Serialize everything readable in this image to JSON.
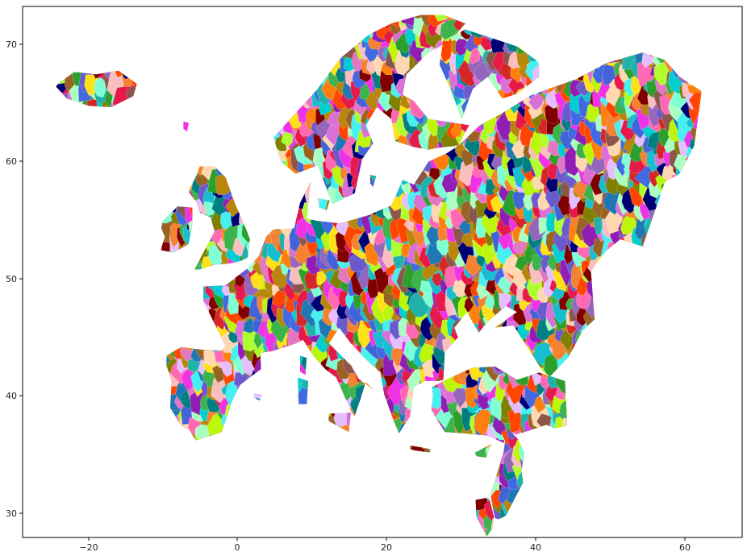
{
  "chart_data": {
    "type": "scatter",
    "title": "",
    "xlabel": "",
    "ylabel": "",
    "xlim": [
      -29,
      68.5
    ],
    "ylim": [
      28,
      71.8
    ],
    "x_ticks": [
      -20,
      0,
      20,
      40,
      60
    ],
    "y_ticks": [
      30,
      40,
      50,
      60,
      70
    ],
    "x_tick_labels": [
      "−20",
      "0",
      "20",
      "40",
      "60"
    ],
    "y_tick_labels": [
      "30",
      "40",
      "50",
      "60",
      "70"
    ],
    "grid": false,
    "legend": "none",
    "description": "Choropleth of European regions, each filled with a random color",
    "palette": [
      "#e6194b",
      "#3cb44b",
      "#ffe119",
      "#4363d8",
      "#f58231",
      "#911eb4",
      "#46f0f0",
      "#f032e6",
      "#bcf60c",
      "#fabebe",
      "#008080",
      "#e6beff",
      "#9a6324",
      "#800000",
      "#aaffc3",
      "#808000",
      "#ffd8b1",
      "#000075",
      "#1f77b4",
      "#ff7f0e",
      "#2ca02c",
      "#d62728",
      "#9467bd",
      "#8c564b",
      "#e377c2",
      "#17becf",
      "#7fffd4",
      "#ff69b4",
      "#6a5acd",
      "#20b2aa",
      "#ff4500",
      "#adff2f",
      "#da70d6",
      "#4169e1",
      "#00ced1",
      "#b8860b"
    ],
    "landmasses": [
      {
        "name": "Iceland",
        "lon": [
          -24,
          -22,
          -19,
          -16,
          -13.5,
          -14,
          -17,
          -20,
          -23,
          -24.5
        ],
        "lat": [
          65.5,
          66.4,
          66.2,
          66.5,
          65.4,
          64.4,
          63.5,
          63.6,
          64.2,
          65.2
        ]
      },
      {
        "name": "Scandinavia",
        "lon": [
          5,
          8,
          11,
          14,
          18,
          21,
          25,
          28,
          31,
          29,
          26,
          23,
          22.5,
          24,
          26,
          29.5,
          31.5,
          30,
          28,
          26,
          24,
          21.5,
          21,
          19,
          17.5,
          18.5,
          17,
          16,
          13,
          11,
          8,
          6
        ],
        "lat": [
          61,
          63,
          65,
          67.5,
          69.5,
          70.4,
          71.1,
          71.1,
          70.4,
          69,
          68,
          66.2,
          64.5,
          64,
          62.5,
          62.2,
          62,
          60.3,
          60.2,
          60,
          60.2,
          60.7,
          62.5,
          63.5,
          62,
          60.5,
          59.2,
          56.4,
          55.5,
          58.7,
          58,
          59
        ]
      },
      {
        "name": "Kola-Karelia",
        "lon": [
          28,
          31,
          34,
          38,
          41,
          41,
          38,
          36,
          34,
          32,
          30.5,
          29,
          27.5
        ],
        "lat": [
          69,
          69.9,
          69.3,
          68.5,
          67.2,
          66,
          64.6,
          64.2,
          66,
          65,
          62.5,
          65,
          67
        ]
      },
      {
        "name": "Great Britain",
        "lon": [
          -5,
          -3,
          -1.5,
          -0.2,
          1.3,
          1.8,
          1.5,
          0.5,
          -1,
          -3,
          -5,
          -5.7,
          -4.5,
          -3,
          -3.5,
          -5,
          -5.5,
          -6.5,
          -5.5
        ],
        "lat": [
          58.6,
          58.6,
          57.7,
          55.5,
          53.4,
          52.6,
          51.1,
          50.8,
          50.6,
          50.5,
          50.1,
          50.1,
          51.5,
          53.2,
          54.4,
          54.8,
          55.7,
          56.5,
          57.8
        ]
      },
      {
        "name": "Ireland",
        "lon": [
          -10,
          -8,
          -6,
          -6,
          -6.5,
          -8.5,
          -10.3,
          -9.7,
          -10.2
        ],
        "lat": [
          54.1,
          55.3,
          55.2,
          53.9,
          52.2,
          51.5,
          51.7,
          52.8,
          53.5
        ]
      },
      {
        "name": "Mainland Europe",
        "lon": [
          -9.5,
          -7.5,
          -5,
          -2,
          -1.5,
          -4.5,
          -4.5,
          -1.5,
          1.5,
          3,
          4,
          5,
          7.8,
          8.6,
          10,
          9.5,
          11,
          14,
          18,
          21,
          22.5,
          24,
          26,
          28.5,
          30,
          33,
          36,
          40,
          46,
          50,
          55,
          58,
          60,
          63,
          62,
          60,
          58,
          57,
          55,
          52,
          50,
          48,
          48.5,
          46.8,
          45,
          42.5,
          41.5,
          37.5,
          35,
          38,
          36.5,
          34,
          32.8,
          31.2,
          29.5,
          30,
          28.2,
          28,
          27.4,
          25.5,
          24,
          23.5,
          22,
          21.3,
          20,
          19.5,
          17,
          15.5,
          13.9,
          12.5,
          15.5,
          16.5,
          18.5,
          17.5,
          16,
          15.6,
          13.5,
          12,
          10.5,
          9,
          8,
          5,
          3.2,
          3.3,
          0.5,
          -0.6,
          -2,
          -5.5,
          -6.5,
          -7.5,
          -9,
          -8.8,
          -9.5
        ],
        "lat": [
          43,
          43.7,
          43.5,
          43.4,
          43.8,
          47.5,
          48.7,
          48.8,
          50.2,
          51.2,
          52.8,
          53.4,
          53.5,
          55.6,
          57.3,
          54.3,
          54.1,
          53.9,
          54.6,
          55.4,
          57.5,
          57.1,
          59,
          59.7,
          60.3,
          62,
          63,
          64.5,
          65.8,
          67.1,
          68,
          67.4,
          66,
          64.8,
          60.3,
          58,
          57.3,
          55.5,
          52,
          52.6,
          51.6,
          50,
          46,
          45,
          42.9,
          41.3,
          41.7,
          45.5,
          45.3,
          46.6,
          47.1,
          45.8,
          44.9,
          46.6,
          45.3,
          44.5,
          43.3,
          41,
          40.9,
          40.9,
          40.4,
          38,
          36.6,
          37.6,
          39.8,
          41.6,
          43,
          44,
          45.3,
          44,
          42.2,
          41.1,
          40.2,
          40.8,
          38,
          38.3,
          41.2,
          41.9,
          42.9,
          44.3,
          44,
          43.4,
          43.2,
          41.9,
          40.6,
          39.3,
          36.7,
          36,
          36.9,
          37.2,
          38.7,
          40.9,
          42.2
        ]
      },
      {
        "name": "Anatolia",
        "lon": [
          26.5,
          29,
          32,
          35,
          38,
          41,
          44.5,
          44.8,
          43,
          42,
          40,
          38,
          36.5,
          36.2,
          34,
          30.7,
          28.2,
          26.4,
          26.6
        ],
        "lat": [
          40.4,
          41.2,
          42,
          42.1,
          41,
          41.6,
          40.9,
          37.2,
          37,
          37.3,
          36.9,
          36.5,
          36.7,
          35.8,
          36.4,
          36.6,
          36.7,
          38.5,
          39.7
        ]
      },
      {
        "name": "Levant",
        "lon": [
          35.8,
          36.4,
          36.2,
          35.2,
          34.4,
          35,
          35.5,
          36.5,
          37.5,
          38.8,
          38.6,
          39,
          38,
          36.8
        ],
        "lat": [
          36.7,
          36,
          35.1,
          33.1,
          31.5,
          29.6,
          29.5,
          29.8,
          31,
          32.5,
          33.5,
          35,
          36.2,
          36.9
        ]
      },
      {
        "name": "Sinai",
        "lon": [
          32.4,
          34.2,
          34.9,
          34.7,
          33.9,
          32.5
        ],
        "lat": [
          31.1,
          31.3,
          29.6,
          28.8,
          28.1,
          29.7
        ]
      },
      {
        "name": "Sicily",
        "lon": [
          12.4,
          15.5,
          15.2,
          12.5
        ],
        "lat": [
          38.2,
          38.3,
          36.7,
          37.6
        ]
      },
      {
        "name": "Sardinia",
        "lon": [
          8.3,
          9.7,
          9.5,
          8.4
        ],
        "lat": [
          41.2,
          40.9,
          39,
          39
        ]
      },
      {
        "name": "Corsica",
        "lon": [
          8.6,
          9.5,
          9.3,
          8.6
        ],
        "lat": [
          43,
          42.8,
          41.4,
          41.7
        ]
      },
      {
        "name": "Crete",
        "lon": [
          23.5,
          26.3,
          26.2,
          24,
          23.5
        ],
        "lat": [
          35.6,
          35.3,
          35,
          35.2,
          35.3
        ]
      },
      {
        "name": "Cyprus",
        "lon": [
          32.3,
          34.5,
          33.8,
          32.5
        ],
        "lat": [
          35,
          35.7,
          34.6,
          34.7
        ]
      },
      {
        "name": "Zealand",
        "lon": [
          11,
          12.6,
          12.2,
          11.2
        ],
        "lat": [
          56,
          55.8,
          55,
          55.2
        ]
      },
      {
        "name": "Gotland",
        "lon": [
          18.1,
          18.9,
          18.5,
          18.1
        ],
        "lat": [
          57.9,
          57.8,
          56.9,
          57.2
        ]
      },
      {
        "name": "Faroe",
        "lon": [
          -7.2,
          -6.5,
          -6.7,
          -7.2
        ],
        "lat": [
          62.3,
          62.2,
          61.5,
          61.7
        ]
      },
      {
        "name": "Balearics",
        "lon": [
          2.3,
          3.5,
          3.1,
          2.4
        ],
        "lat": [
          39.9,
          39.8,
          39.3,
          39.5
        ]
      }
    ]
  }
}
